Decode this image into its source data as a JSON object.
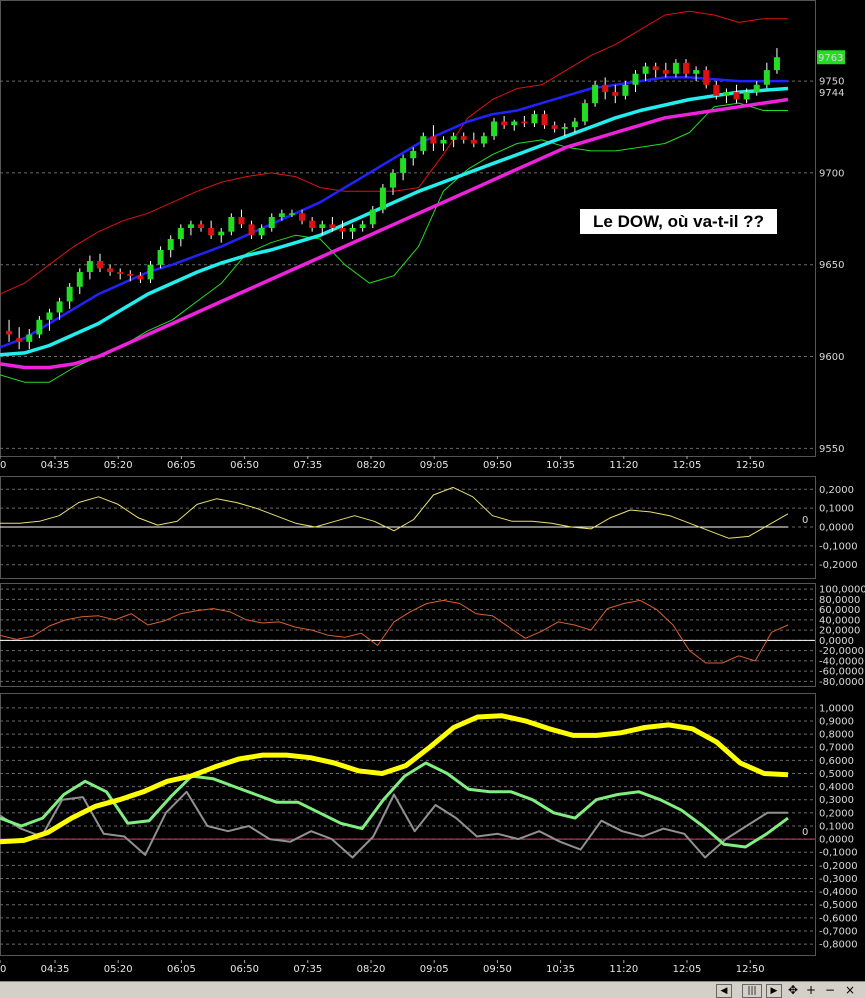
{
  "annotation": "Le DOW, où va-t-il ??",
  "colors": {
    "background": "#000000",
    "candle_up": "#22dd22",
    "candle_down": "#dd1111",
    "bollinger_upper": "#dd1111",
    "bollinger_lower": "#22dd22",
    "ma_fast": "#2222ff",
    "ma_mid": "#22eeee",
    "ma_slow": "#ee22dd",
    "oscillator_1": "#e8e070",
    "oscillator_2": "#d86030",
    "oscillator_3_bold": "#ffff00",
    "oscillator_3_green": "#80ee80",
    "oscillator_3_gray": "#909090",
    "zero_line_p3": "#dd3377"
  },
  "toolbar_icons": [
    "left-arrow-icon",
    "grip-icon",
    "right-arrow-icon",
    "move-icon",
    "plus-icon",
    "minus-icon",
    "close-icon"
  ],
  "chart_data": [
    {
      "type": "candlestick",
      "title": "",
      "x_tick_labels": [
        "0",
        "04:35",
        "05:20",
        "06:05",
        "06:50",
        "07:35",
        "08:20",
        "09:05",
        "09:50",
        "10:35",
        "11:20",
        "12:05",
        "12:50"
      ],
      "y_tick_labels": [
        "9550",
        "9600",
        "9650",
        "9700",
        "9750"
      ],
      "ylim": [
        9548,
        9792
      ],
      "grid": "horizontal dashed",
      "price_tags": [
        {
          "text": "9763",
          "color": "#22dd22"
        },
        {
          "text": "9744",
          "color": "#22dddd"
        }
      ],
      "ohlc": [
        [
          9614,
          9620,
          9608,
          9612
        ],
        [
          9610,
          9616,
          9604,
          9608
        ],
        [
          9608,
          9615,
          9604,
          9612
        ],
        [
          9612,
          9622,
          9610,
          9620
        ],
        [
          9620,
          9626,
          9614,
          9624
        ],
        [
          9624,
          9632,
          9620,
          9630
        ],
        [
          9630,
          9640,
          9626,
          9638
        ],
        [
          9638,
          9648,
          9634,
          9646
        ],
        [
          9646,
          9655,
          9642,
          9652
        ],
        [
          9652,
          9656,
          9646,
          9648
        ],
        [
          9648,
          9650,
          9644,
          9646
        ],
        [
          9646,
          9648,
          9642,
          9645
        ],
        [
          9645,
          9647,
          9641,
          9644
        ],
        [
          9644,
          9646,
          9640,
          9642
        ],
        [
          9642,
          9652,
          9640,
          9650
        ],
        [
          9650,
          9660,
          9648,
          9658
        ],
        [
          9658,
          9666,
          9654,
          9664
        ],
        [
          9664,
          9672,
          9660,
          9670
        ],
        [
          9670,
          9674,
          9666,
          9672
        ],
        [
          9672,
          9674,
          9668,
          9670
        ],
        [
          9670,
          9674,
          9664,
          9666
        ],
        [
          9666,
          9670,
          9662,
          9668
        ],
        [
          9668,
          9678,
          9666,
          9676
        ],
        [
          9676,
          9680,
          9670,
          9672
        ],
        [
          9672,
          9674,
          9664,
          9666
        ],
        [
          9666,
          9672,
          9664,
          9670
        ],
        [
          9670,
          9678,
          9668,
          9676
        ],
        [
          9676,
          9680,
          9674,
          9678
        ],
        [
          9678,
          9680,
          9676,
          9678
        ],
        [
          9678,
          9680,
          9672,
          9674
        ],
        [
          9674,
          9676,
          9668,
          9670
        ],
        [
          9670,
          9674,
          9666,
          9672
        ],
        [
          9672,
          9676,
          9668,
          9670
        ],
        [
          9670,
          9674,
          9664,
          9668
        ],
        [
          9668,
          9672,
          9664,
          9670
        ],
        [
          9670,
          9674,
          9668,
          9672
        ],
        [
          9672,
          9682,
          9670,
          9680
        ],
        [
          9680,
          9694,
          9678,
          9692
        ],
        [
          9692,
          9702,
          9688,
          9700
        ],
        [
          9700,
          9710,
          9696,
          9708
        ],
        [
          9708,
          9714,
          9704,
          9712
        ],
        [
          9712,
          9722,
          9710,
          9720
        ],
        [
          9720,
          9726,
          9712,
          9716
        ],
        [
          9716,
          9720,
          9712,
          9718
        ],
        [
          9718,
          9722,
          9714,
          9720
        ],
        [
          9720,
          9722,
          9716,
          9718
        ],
        [
          9718,
          9722,
          9714,
          9716
        ],
        [
          9716,
          9722,
          9714,
          9720
        ],
        [
          9720,
          9730,
          9718,
          9728
        ],
        [
          9728,
          9731,
          9724,
          9726
        ],
        [
          9726,
          9729,
          9723,
          9728
        ],
        [
          9728,
          9731,
          9725,
          9727
        ],
        [
          9727,
          9734,
          9725,
          9732
        ],
        [
          9732,
          9734,
          9724,
          9726
        ],
        [
          9726,
          9728,
          9722,
          9724
        ],
        [
          9724,
          9727,
          9720,
          9725
        ],
        [
          9725,
          9730,
          9722,
          9728
        ],
        [
          9728,
          9740,
          9726,
          9738
        ],
        [
          9738,
          9750,
          9736,
          9748
        ],
        [
          9748,
          9752,
          9740,
          9744
        ],
        [
          9744,
          9748,
          9738,
          9742
        ],
        [
          9742,
          9750,
          9740,
          9748
        ],
        [
          9748,
          9756,
          9744,
          9754
        ],
        [
          9754,
          9760,
          9750,
          9758
        ],
        [
          9758,
          9760,
          9752,
          9756
        ],
        [
          9756,
          9760,
          9752,
          9754
        ],
        [
          9754,
          9762,
          9752,
          9760
        ],
        [
          9760,
          9762,
          9752,
          9754
        ],
        [
          9754,
          9758,
          9750,
          9756
        ],
        [
          9756,
          9758,
          9746,
          9748
        ],
        [
          9748,
          9750,
          9740,
          9742
        ],
        [
          9742,
          9746,
          9738,
          9744
        ],
        [
          9744,
          9748,
          9738,
          9740
        ],
        [
          9740,
          9746,
          9738,
          9744
        ],
        [
          9744,
          9750,
          9742,
          9748
        ],
        [
          9748,
          9760,
          9746,
          9756
        ],
        [
          9756,
          9768,
          9754,
          9763
        ]
      ],
      "series": [
        {
          "name": "",
          "color": "#dd1111",
          "values": [
            9634,
            9640,
            9650,
            9660,
            9668,
            9674,
            9678,
            9684,
            9690,
            9695,
            9698,
            9700,
            9698,
            9692,
            9690,
            9690,
            9690,
            9692,
            9710,
            9730,
            9740,
            9746,
            9748,
            9756,
            9764,
            9770,
            9778,
            9786,
            9788,
            9786,
            9782,
            9784,
            9784
          ]
        },
        {
          "name": "",
          "color": "#22dd22",
          "values": [
            9590,
            9586,
            9586,
            9594,
            9600,
            9606,
            9614,
            9620,
            9630,
            9640,
            9656,
            9662,
            9666,
            9664,
            9650,
            9640,
            9644,
            9660,
            9690,
            9702,
            9710,
            9716,
            9718,
            9714,
            9712,
            9712,
            9714,
            9716,
            9722,
            9736,
            9738,
            9734,
            9734
          ]
        },
        {
          "name": "",
          "color": "#2222ff",
          "values": [
            9605,
            9610,
            9618,
            9626,
            9634,
            9640,
            9646,
            9650,
            9655,
            9660,
            9666,
            9672,
            9678,
            9684,
            9692,
            9700,
            9708,
            9716,
            9722,
            9728,
            9732,
            9734,
            9738,
            9742,
            9746,
            9748,
            9750,
            9752,
            9752,
            9751,
            9750,
            9750,
            9750
          ]
        },
        {
          "name": "",
          "color": "#22eeee",
          "values": [
            9601,
            9602,
            9606,
            9612,
            9618,
            9626,
            9634,
            9640,
            9646,
            9651,
            9655,
            9658,
            9662,
            9666,
            9672,
            9678,
            9684,
            9690,
            9695,
            9700,
            9705,
            9710,
            9715,
            9720,
            9725,
            9730,
            9734,
            9737,
            9740,
            9742,
            9744,
            9745,
            9746
          ]
        },
        {
          "name": "",
          "color": "#ee22dd",
          "values": [
            9596,
            9594,
            9594,
            9596,
            9600,
            9606,
            9612,
            9618,
            9624,
            9630,
            9636,
            9642,
            9648,
            9654,
            9660,
            9666,
            9672,
            9678,
            9684,
            9690,
            9696,
            9702,
            9708,
            9714,
            9718,
            9722,
            9726,
            9730,
            9732,
            9734,
            9736,
            9738,
            9740
          ]
        }
      ]
    },
    {
      "type": "line",
      "title": "",
      "y_tick_labels": [
        "0,2000",
        "0,1000",
        "0,0000",
        "-0,1000",
        "-0,2000"
      ],
      "zero_label": "0",
      "ylim": [
        -0.26,
        0.26
      ],
      "series": [
        {
          "name": "",
          "color": "#e8e070",
          "values": [
            0.02,
            0.02,
            0.03,
            0.06,
            0.13,
            0.16,
            0.12,
            0.05,
            0.01,
            0.03,
            0.12,
            0.15,
            0.13,
            0.1,
            0.06,
            0.02,
            0.0,
            0.03,
            0.06,
            0.03,
            -0.02,
            0.04,
            0.17,
            0.21,
            0.16,
            0.06,
            0.03,
            0.03,
            0.02,
            0.0,
            -0.01,
            0.05,
            0.09,
            0.08,
            0.06,
            0.02,
            -0.02,
            -0.06,
            -0.05,
            0.01,
            0.07
          ]
        }
      ]
    },
    {
      "type": "line",
      "title": "",
      "y_tick_labels": [
        "100,0000",
        "80,0000",
        "60,0000",
        "40,0000",
        "20,0000",
        "0,0000",
        "-20,0000",
        "-40,0000",
        "-60,0000",
        "-80,0000"
      ],
      "ylim": [
        -85,
        108
      ],
      "series": [
        {
          "name": "",
          "color": "#d86030",
          "values": [
            10,
            2,
            8,
            28,
            40,
            46,
            48,
            40,
            52,
            30,
            38,
            52,
            58,
            62,
            56,
            40,
            34,
            36,
            26,
            20,
            10,
            6,
            14,
            -10,
            36,
            56,
            72,
            78,
            72,
            52,
            48,
            26,
            4,
            18,
            36,
            30,
            20,
            62,
            72,
            78,
            60,
            30,
            -20,
            -44,
            -44,
            -30,
            -40,
            16,
            30
          ]
        }
      ]
    },
    {
      "type": "line",
      "title": "",
      "y_tick_labels": [
        "1,0000",
        "0,9000",
        "0,8000",
        "0,7000",
        "0,6000",
        "0,5000",
        "0,4000",
        "0,3000",
        "0,2000",
        "0,1000",
        "0,0000",
        "-0,1000",
        "-0,2000",
        "-0,3000",
        "-0,4000",
        "-0,5000",
        "-0,6000",
        "-0,7000",
        "-0,8000"
      ],
      "zero_label": "0",
      "ylim": [
        -0.86,
        1.09
      ],
      "series": [
        {
          "name": "",
          "color": "#ffff00",
          "values": [
            -0.02,
            -0.01,
            0.05,
            0.16,
            0.25,
            0.3,
            0.36,
            0.44,
            0.48,
            0.55,
            0.61,
            0.64,
            0.64,
            0.62,
            0.58,
            0.52,
            0.5,
            0.56,
            0.7,
            0.85,
            0.93,
            0.94,
            0.9,
            0.84,
            0.79,
            0.79,
            0.81,
            0.85,
            0.87,
            0.84,
            0.74,
            0.58,
            0.5,
            0.49
          ]
        },
        {
          "name": "",
          "color": "#80ee80",
          "values": [
            0.16,
            0.1,
            0.16,
            0.34,
            0.44,
            0.36,
            0.12,
            0.14,
            0.32,
            0.48,
            0.46,
            0.4,
            0.34,
            0.28,
            0.28,
            0.2,
            0.12,
            0.08,
            0.3,
            0.48,
            0.58,
            0.5,
            0.38,
            0.36,
            0.36,
            0.3,
            0.2,
            0.16,
            0.3,
            0.34,
            0.36,
            0.3,
            0.22,
            0.1,
            -0.04,
            -0.06,
            0.04,
            0.16
          ]
        },
        {
          "name": "",
          "color": "#909090",
          "values": [
            0.18,
            0.08,
            0.02,
            0.3,
            0.32,
            0.04,
            0.02,
            -0.12,
            0.2,
            0.36,
            0.1,
            0.06,
            0.1,
            0.0,
            -0.02,
            0.06,
            0.0,
            -0.14,
            0.02,
            0.34,
            0.06,
            0.26,
            0.16,
            0.02,
            0.04,
            0.0,
            0.06,
            -0.02,
            -0.08,
            0.14,
            0.06,
            0.02,
            0.08,
            0.04,
            -0.14,
            0.0,
            0.1,
            0.2,
            0.2
          ]
        }
      ]
    }
  ]
}
